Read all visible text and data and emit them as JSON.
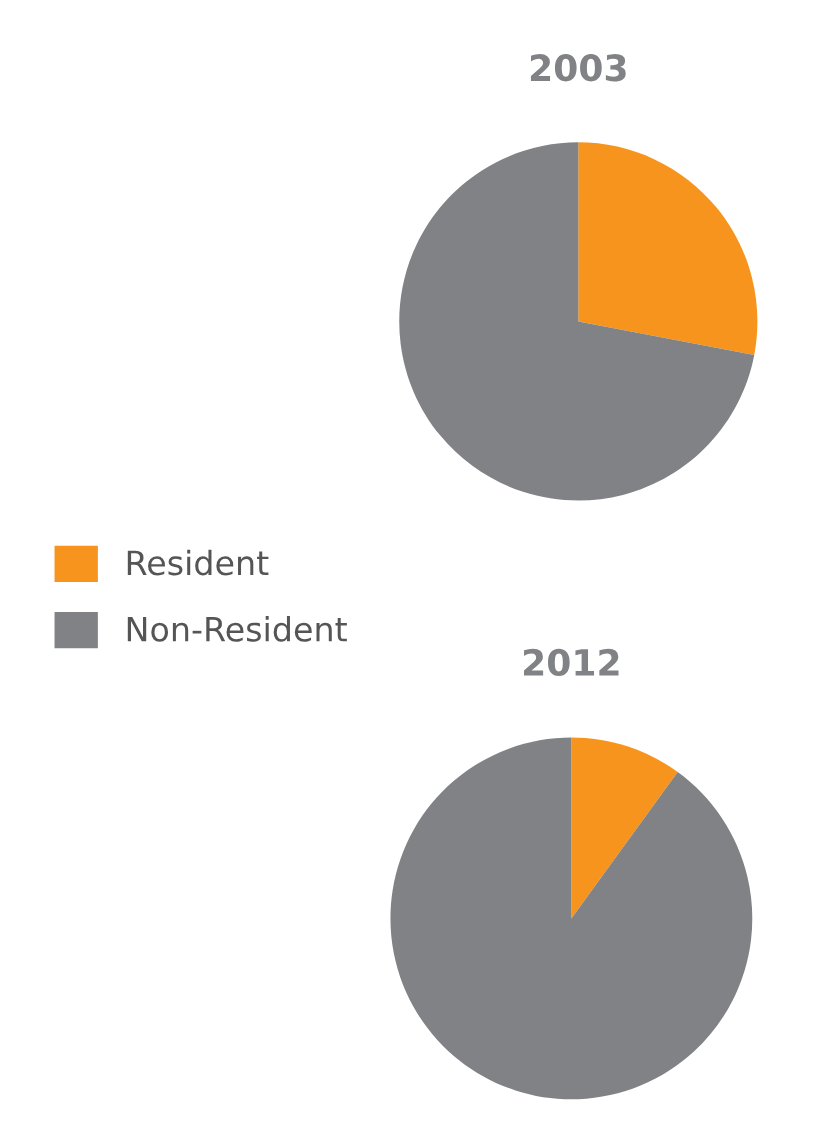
{
  "chart_data": [
    {
      "type": "pie",
      "title": "2003",
      "categories": [
        "Resident",
        "Non-Resident"
      ],
      "values": [
        28,
        72
      ],
      "colors": [
        "#f7941d",
        "#808285"
      ],
      "legend": "left"
    },
    {
      "type": "pie",
      "title": "2012",
      "values": [
        10,
        90
      ],
      "colors": [
        "#f7941d",
        "#808285"
      ]
    }
  ]
}
